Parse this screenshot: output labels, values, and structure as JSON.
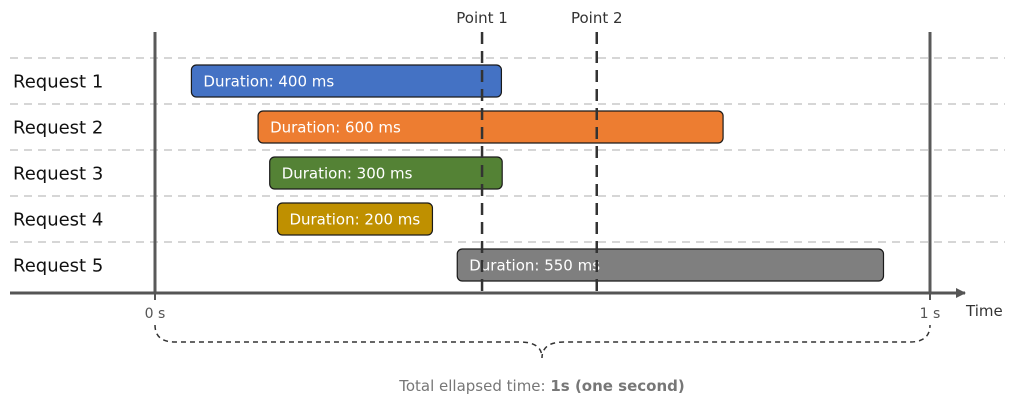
{
  "chart_data": {
    "type": "gantt",
    "time_unit": "ms",
    "requests": [
      {
        "label": "Request 1",
        "start": 47,
        "duration": 400,
        "bar_text": "Duration: 400 ms",
        "color": "#4472C4"
      },
      {
        "label": "Request 2",
        "start": 133,
        "duration": 600,
        "bar_text": "Duration: 600 ms",
        "color": "#ED7D31"
      },
      {
        "label": "Request 3",
        "start": 148,
        "duration": 300,
        "bar_text": "Duration: 300 ms",
        "color": "#548235"
      },
      {
        "label": "Request 4",
        "start": 158,
        "duration": 200,
        "bar_text": "Duration: 200 ms",
        "color": "#BF9000"
      },
      {
        "label": "Request 5",
        "start": 390,
        "duration": 550,
        "bar_text": "Duration: 550 ms",
        "color": "#7F7F7F"
      }
    ],
    "points": [
      {
        "label": "Point 1",
        "time": 422
      },
      {
        "label": "Point 2",
        "time": 570
      }
    ],
    "axis": {
      "label": "Time",
      "start_label": "0 s",
      "end_label": "1 s",
      "range": [
        0,
        1000
      ]
    },
    "total": {
      "prefix": "Total ellapsed time: ",
      "bold": "1s (one second)"
    }
  }
}
